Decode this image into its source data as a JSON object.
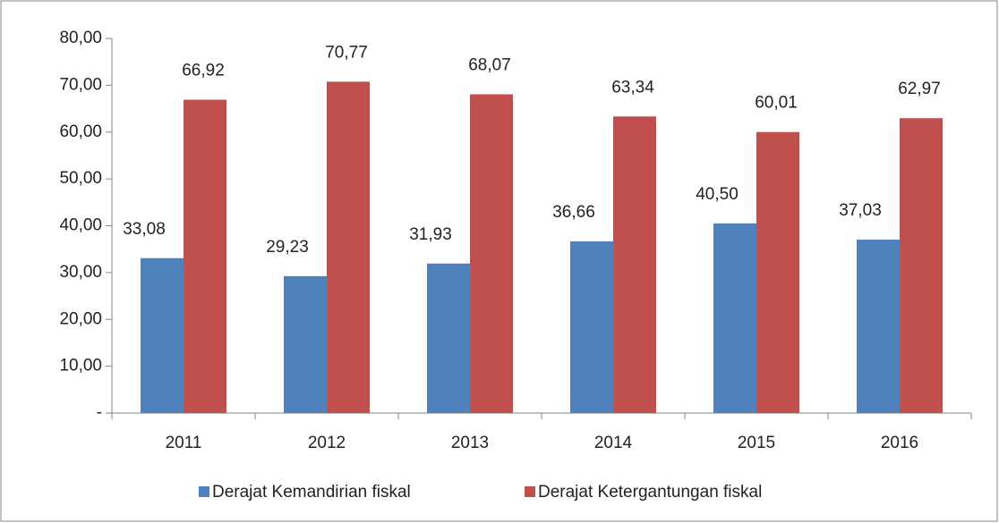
{
  "chart_data": {
    "type": "bar",
    "categories": [
      "2011",
      "2012",
      "2013",
      "2014",
      "2015",
      "2016"
    ],
    "series": [
      {
        "name": "Derajat Kemandirian fiskal",
        "color": "#4f81bd",
        "values": [
          33.08,
          29.23,
          31.93,
          36.66,
          40.5,
          37.03
        ],
        "value_labels": [
          "33,08",
          "29,23",
          "31,93",
          "36,66",
          "40,50",
          "37,03"
        ]
      },
      {
        "name": "Derajat Ketergantungan fiskal",
        "color": "#c0504d",
        "values": [
          66.92,
          70.77,
          68.07,
          63.34,
          60.01,
          62.97
        ],
        "value_labels": [
          "66,92",
          "70,77",
          "68,07",
          "63,34",
          "60,01",
          "62,97"
        ]
      }
    ],
    "ylim": [
      0,
      80
    ],
    "yticks": [
      {
        "value": 0,
        "label": "-"
      },
      {
        "value": 10,
        "label": "10,00"
      },
      {
        "value": 20,
        "label": "20,00"
      },
      {
        "value": 30,
        "label": "30,00"
      },
      {
        "value": 40,
        "label": "40,00"
      },
      {
        "value": 50,
        "label": "50,00"
      },
      {
        "value": 60,
        "label": "60,00"
      },
      {
        "value": 70,
        "label": "70,00"
      },
      {
        "value": 80,
        "label": "80,00"
      }
    ],
    "legend": "bottom"
  }
}
